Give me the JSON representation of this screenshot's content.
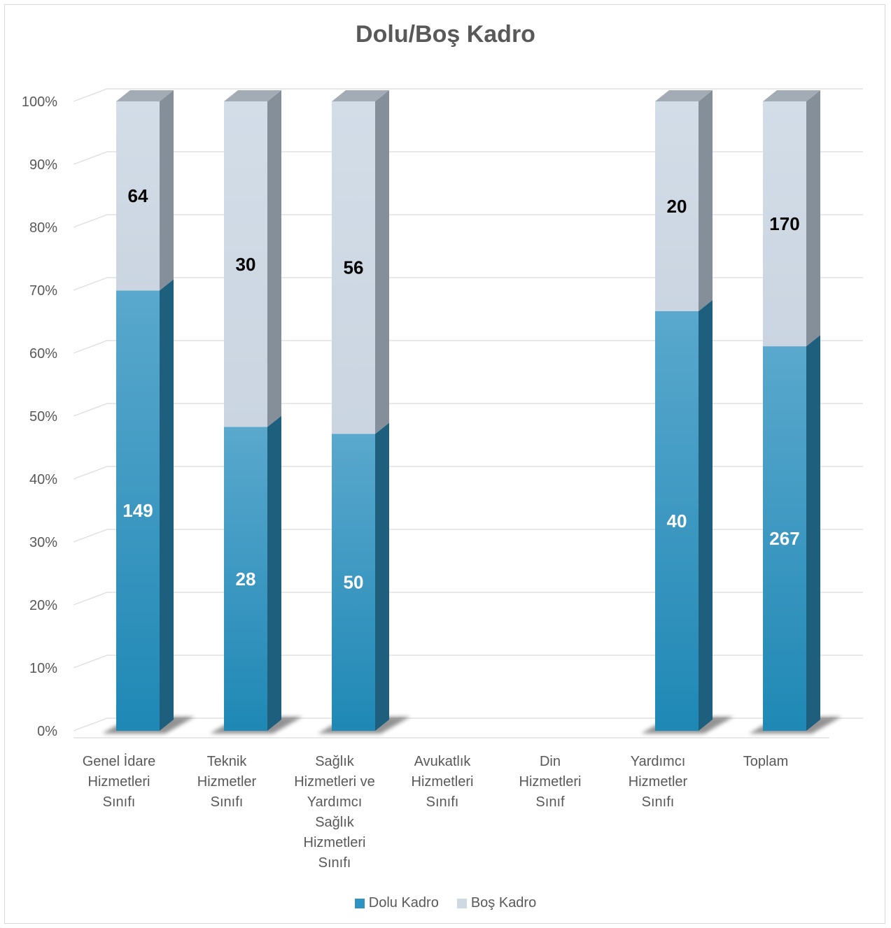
{
  "chart_data": {
    "type": "bar",
    "stacked": "percent",
    "title": "Dolu/Boş Kadro",
    "categories": [
      [
        "Genel İdare",
        "Hizmetleri",
        "Sınıfı"
      ],
      [
        "Teknik",
        "Hizmetler",
        "Sınıfı"
      ],
      [
        "Sağlık",
        "Hizmetleri ve",
        "Yardımcı",
        "Sağlık",
        "Hizmetleri",
        "Sınıfı"
      ],
      [
        "Avukatlık",
        "Hizmetleri",
        "Sınıfı"
      ],
      [
        "Din",
        "Hizmetleri",
        "Sınıf"
      ],
      [
        "Yardımcı",
        "Hizmetler",
        "Sınıfı"
      ],
      [
        "Toplam"
      ]
    ],
    "series": [
      {
        "name": "Dolu Kadro",
        "color": "#2e93c0",
        "values": [
          149,
          28,
          50,
          null,
          null,
          40,
          267
        ]
      },
      {
        "name": "Boş Kadro",
        "color": "#cfd9e4",
        "values": [
          64,
          30,
          56,
          null,
          null,
          20,
          170
        ]
      }
    ],
    "ylim": [
      0,
      100
    ],
    "yticks": [
      "0%",
      "10%",
      "20%",
      "30%",
      "40%",
      "50%",
      "60%",
      "70%",
      "80%",
      "90%",
      "100%"
    ],
    "grid": true,
    "legend_position": "bottom"
  }
}
